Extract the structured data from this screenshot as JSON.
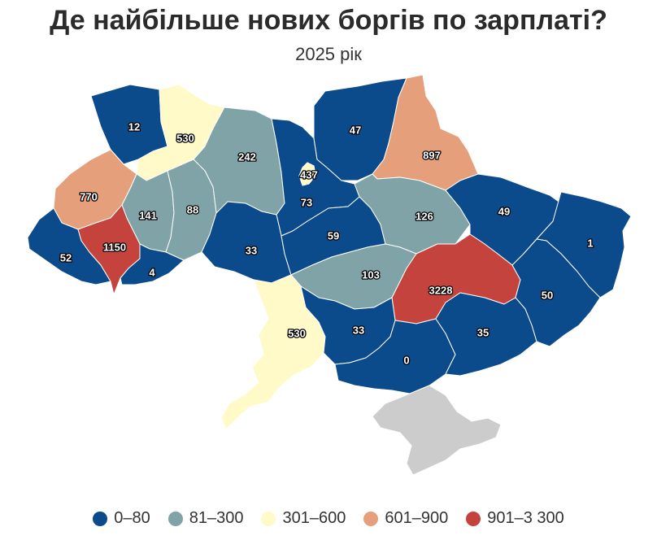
{
  "title": "Де найбільше нових боргів по зарплаті?",
  "subtitle": "2025 рік",
  "colors": {
    "c1": "#0b4a8b",
    "c2": "#7fa3a7",
    "c3": "#fffac7",
    "c4": "#e5a07b",
    "c5": "#c4443d",
    "nodata": "#cccccc",
    "border": "#ffffff"
  },
  "legend": [
    {
      "label": "0–80",
      "color": "#0b4a8b"
    },
    {
      "label": "81–300",
      "color": "#7fa3a7"
    },
    {
      "label": "301–600",
      "color": "#fffac7"
    },
    {
      "label": "601–900",
      "color": "#e5a07b"
    },
    {
      "label": "901–3 300",
      "color": "#c4443d"
    }
  ],
  "regions": [
    {
      "name": "volyn",
      "value": "12",
      "cls": "c1"
    },
    {
      "name": "rivne",
      "value": "530",
      "cls": "c3"
    },
    {
      "name": "zhytomyr",
      "value": "242",
      "cls": "c2"
    },
    {
      "name": "kyiv-oblast",
      "value": "73",
      "cls": "c1"
    },
    {
      "name": "kyiv-city",
      "value": "437",
      "cls": "c3"
    },
    {
      "name": "chernihiv",
      "value": "47",
      "cls": "c1"
    },
    {
      "name": "sumy",
      "value": "897",
      "cls": "c4"
    },
    {
      "name": "lviv",
      "value": "770",
      "cls": "c4"
    },
    {
      "name": "ternopil",
      "value": "141",
      "cls": "c2"
    },
    {
      "name": "khmelnytskyi",
      "value": "88",
      "cls": "c2"
    },
    {
      "name": "vinnytsia",
      "value": "33",
      "cls": "c1"
    },
    {
      "name": "cherkasy",
      "value": "59",
      "cls": "c1"
    },
    {
      "name": "poltava",
      "value": "126",
      "cls": "c2"
    },
    {
      "name": "kharkiv",
      "value": "49",
      "cls": "c1"
    },
    {
      "name": "luhansk",
      "value": "1",
      "cls": "c1"
    },
    {
      "name": "zakarpattia",
      "value": "52",
      "cls": "c1"
    },
    {
      "name": "ivano-frankivsk",
      "value": "1150",
      "cls": "c5"
    },
    {
      "name": "chernivtsi",
      "value": "4",
      "cls": "c1"
    },
    {
      "name": "kirovohrad",
      "value": "103",
      "cls": "c2"
    },
    {
      "name": "dnipropetrovsk",
      "value": "3228",
      "cls": "c5"
    },
    {
      "name": "donetsk",
      "value": "50",
      "cls": "c1"
    },
    {
      "name": "odesa",
      "value": "530",
      "cls": "c3"
    },
    {
      "name": "mykolaiv",
      "value": "33",
      "cls": "c1"
    },
    {
      "name": "kherson",
      "value": "0",
      "cls": "c1"
    },
    {
      "name": "zaporizhzhia",
      "value": "35",
      "cls": "c1"
    },
    {
      "name": "crimea",
      "value": "",
      "cls": "nodata"
    }
  ]
}
